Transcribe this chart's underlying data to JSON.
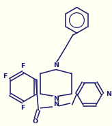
{
  "background_color": "#FEFEF2",
  "line_color": "#1e1e6e",
  "line_width": 1.15,
  "font_size": 6.8,
  "figsize": [
    1.64,
    1.84
  ],
  "dpi": 100,
  "xlim": [
    0,
    164
  ],
  "ylim": [
    0,
    184
  ]
}
